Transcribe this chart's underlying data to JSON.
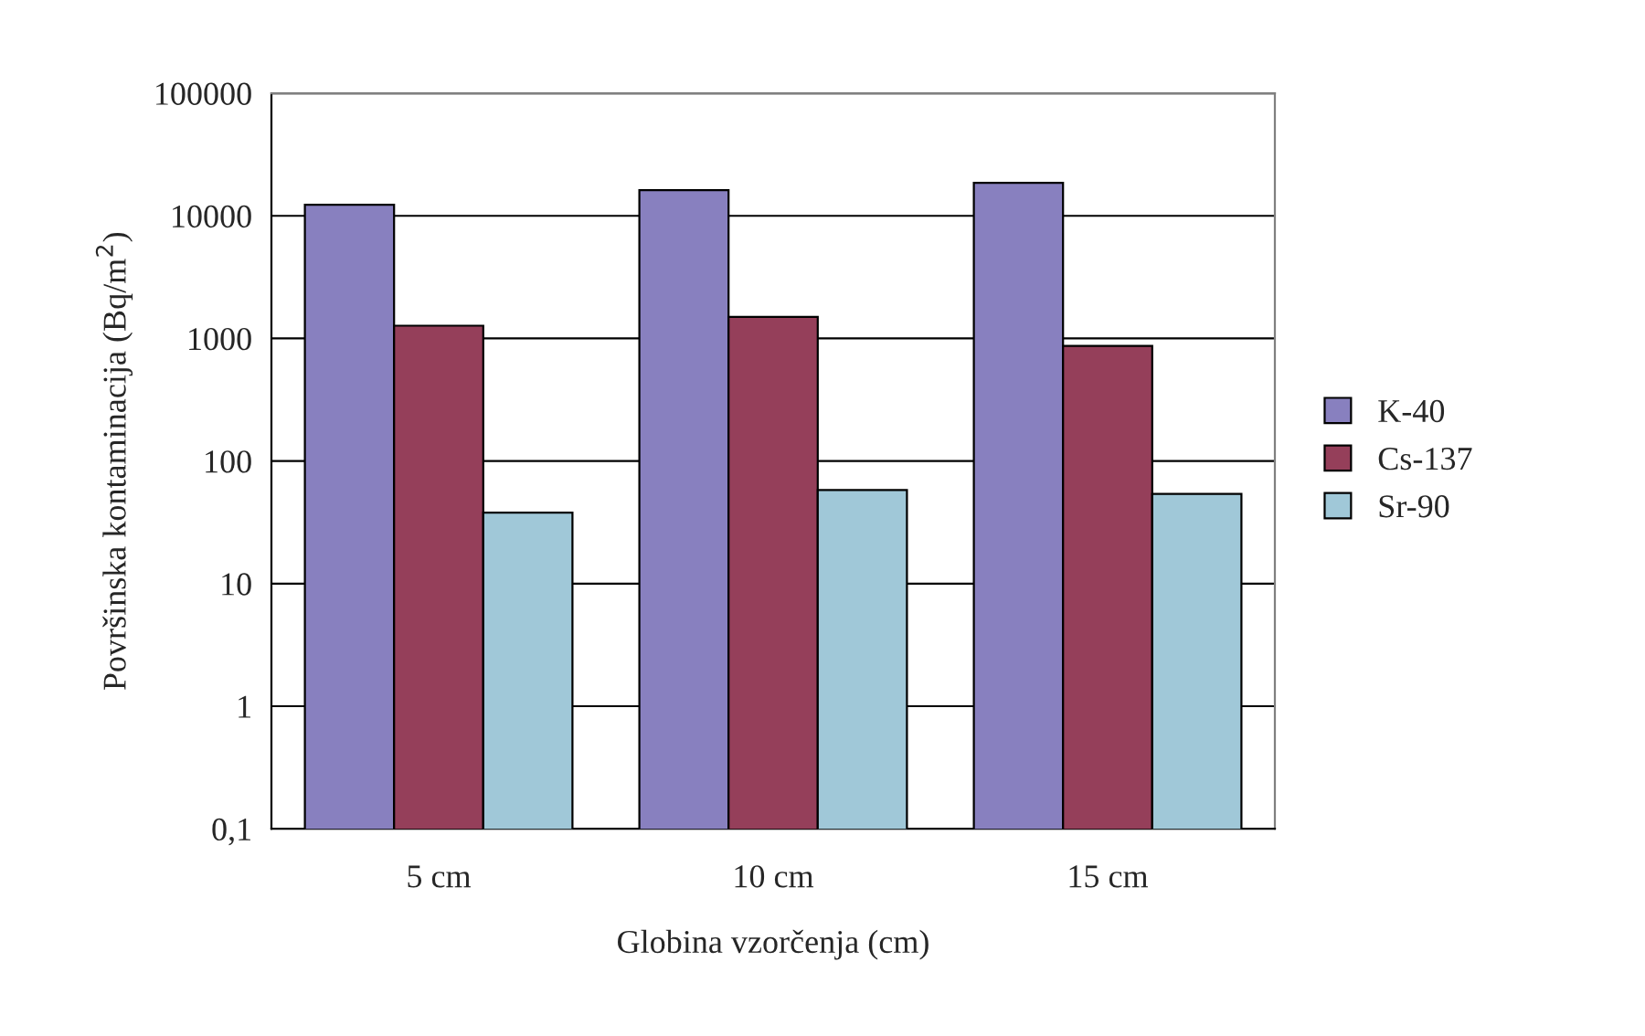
{
  "chart_data": {
    "type": "bar",
    "xlabel": "Globina vzorčenja (cm)",
    "ylabel": "Površinska kontaminacija (Bq/m$^{2}$)",
    "categories": [
      "5 cm",
      "10 cm",
      "15 cm"
    ],
    "series": [
      {
        "name": "K-40",
        "color": "#8880bf",
        "values": [
          12300,
          16200,
          18600
        ]
      },
      {
        "name": "Cs-137",
        "color": "#953f5a",
        "values": [
          1270,
          1500,
          870
        ]
      },
      {
        "name": "Sr-90",
        "color": "#a0c8d8",
        "values": [
          38,
          58,
          54
        ]
      }
    ],
    "log": true,
    "ylim": [
      0.1,
      100000
    ],
    "yticks": [
      {
        "value": 0.1,
        "label": "0,1"
      },
      1,
      10,
      100,
      1000,
      10000,
      100000
    ],
    "grid": "y",
    "legend": "right"
  }
}
